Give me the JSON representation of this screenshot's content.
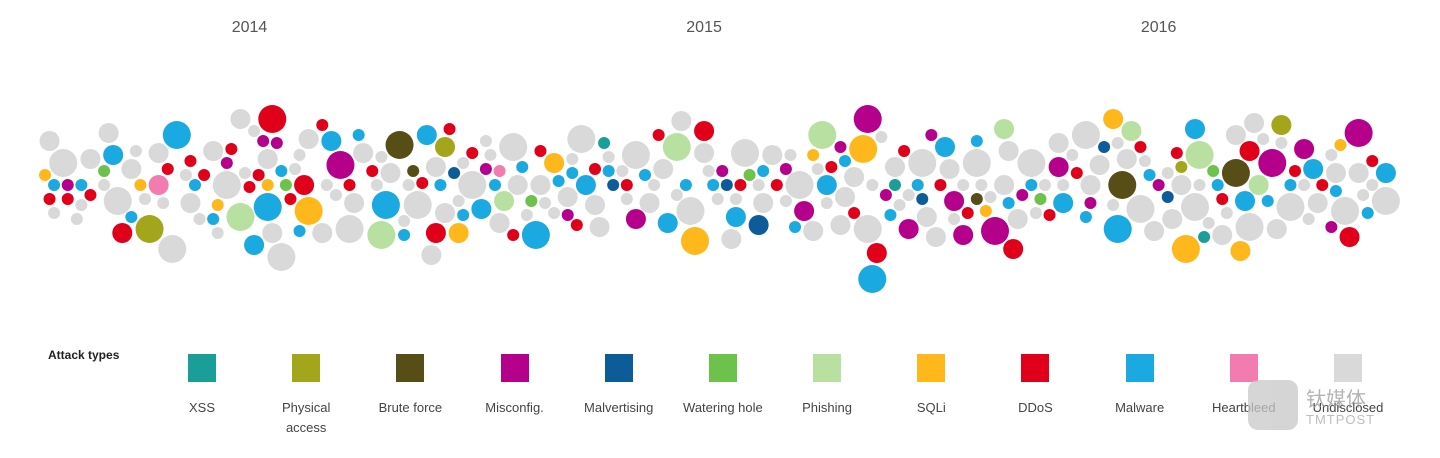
{
  "chart_data": {
    "type": "beeswarm",
    "xticks": [
      2014,
      2015,
      2016
    ],
    "xlim": [
      2013.55,
      2016.52
    ],
    "legend_title": "Attack types",
    "series": [
      {
        "name": "XSS",
        "color": "#1a9e97",
        "x": [
          2014.78,
          2015.42,
          2016.1
        ],
        "size": [
          1,
          1,
          1
        ]
      },
      {
        "name": "Physical access",
        "color": "#a3a51a",
        "x": [
          2013.78,
          2014.43,
          2016.27,
          2016.05
        ],
        "size": [
          3,
          2,
          2,
          1
        ]
      },
      {
        "name": "Brute force",
        "color": "#574d17",
        "x": [
          2014.33,
          2015.6,
          2015.92,
          2016.17,
          2014.36
        ],
        "size": [
          3,
          1,
          3,
          3,
          1
        ]
      },
      {
        "name": "Misconfig.",
        "color": "#b5008c",
        "x": [
          2013.6,
          2013.95,
          2014.03,
          2014.06,
          2014.2,
          2014.52,
          2014.7,
          2014.85,
          2015.04,
          2015.18,
          2015.22,
          2015.3,
          2015.36,
          2015.45,
          2015.5,
          2015.57,
          2015.64,
          2015.7,
          2015.78,
          2015.85,
          2016,
          2016.25,
          2016.32,
          2016.38,
          2016.44,
          2015.4,
          2015.55
        ],
        "size": [
          1,
          1,
          1,
          1,
          3,
          1,
          1,
          2,
          1,
          1,
          2,
          1,
          3,
          2,
          1,
          2,
          3,
          1,
          2,
          1,
          1,
          3,
          2,
          1,
          3,
          1,
          2
        ]
      },
      {
        "name": "Malvertising",
        "color": "#0d5c9a",
        "x": [
          2014.45,
          2014.8,
          2015.05,
          2015.12,
          2015.48,
          2015.88,
          2016.02
        ],
        "size": [
          1,
          1,
          1,
          2,
          1,
          1,
          1
        ]
      },
      {
        "name": "Watering hole",
        "color": "#6cc24a",
        "x": [
          2013.68,
          2014.08,
          2014.62,
          2015.1,
          2015.74,
          2016.12
        ],
        "size": [
          1,
          1,
          1,
          1,
          1,
          1
        ]
      },
      {
        "name": "Phishing",
        "color": "#b8e0a0",
        "x": [
          2013.98,
          2014.29,
          2014.56,
          2014.94,
          2015.26,
          2015.66,
          2015.94,
          2016.09,
          2016.22
        ],
        "size": [
          3,
          3,
          2,
          3,
          3,
          2,
          2,
          3,
          2
        ]
      },
      {
        "name": "SQLi",
        "color": "#ffb81c",
        "x": [
          2013.55,
          2013.76,
          2014.04,
          2014.13,
          2014.46,
          2014.67,
          2014.98,
          2015.24,
          2015.35,
          2015.62,
          2015.9,
          2016.06,
          2016.18,
          2016.4,
          2013.93
        ],
        "size": [
          1,
          1,
          1,
          3,
          2,
          2,
          3,
          1,
          3,
          1,
          2,
          3,
          2,
          1,
          1
        ]
      },
      {
        "name": "DDoS",
        "color": "#e00019",
        "x": [
          2013.56,
          2013.6,
          2013.65,
          2013.72,
          2013.82,
          2013.87,
          2013.9,
          2013.96,
          2014,
          2014.02,
          2014.05,
          2014.09,
          2014.12,
          2014.16,
          2014.22,
          2014.27,
          2014.38,
          2014.41,
          2014.44,
          2014.49,
          2014.58,
          2014.64,
          2014.72,
          2014.76,
          2014.83,
          2014.9,
          2015,
          2015.08,
          2015.16,
          2015.28,
          2015.33,
          2015.38,
          2015.44,
          2015.52,
          2015.58,
          2015.68,
          2015.76,
          2015.82,
          2015.96,
          2016.04,
          2016.14,
          2016.2,
          2016.3,
          2016.36,
          2016.42,
          2016.47
        ],
        "size": [
          1,
          1,
          1,
          2,
          1,
          1,
          1,
          1,
          1,
          1,
          3,
          1,
          2,
          1,
          1,
          1,
          1,
          2,
          1,
          1,
          1,
          1,
          1,
          1,
          1,
          1,
          2,
          1,
          1,
          1,
          1,
          2,
          1,
          1,
          1,
          2,
          1,
          1,
          1,
          1,
          1,
          2,
          1,
          1,
          2,
          1
        ]
      },
      {
        "name": "Malware",
        "color": "#1aa9e0",
        "x": [
          2013.57,
          2013.63,
          2013.7,
          2013.74,
          2013.84,
          2013.88,
          2013.92,
          2014.01,
          2014.04,
          2014.07,
          2014.11,
          2014.18,
          2014.24,
          2014.3,
          2014.34,
          2014.39,
          2014.42,
          2014.47,
          2014.51,
          2014.54,
          2014.6,
          2014.63,
          2014.68,
          2014.71,
          2014.74,
          2014.79,
          2014.87,
          2014.92,
          2014.96,
          2015.02,
          2015.07,
          2015.13,
          2015.2,
          2015.27,
          2015.31,
          2015.37,
          2015.41,
          2015.47,
          2015.53,
          2015.6,
          2015.67,
          2015.72,
          2015.79,
          2015.84,
          2015.91,
          2015.98,
          2016.08,
          2016.13,
          2016.19,
          2016.24,
          2016.29,
          2016.34,
          2016.39,
          2016.46,
          2016.5
        ],
        "size": [
          1,
          1,
          2,
          1,
          3,
          1,
          1,
          2,
          3,
          1,
          1,
          2,
          1,
          3,
          1,
          2,
          1,
          1,
          2,
          1,
          1,
          3,
          1,
          1,
          2,
          1,
          1,
          2,
          1,
          1,
          2,
          1,
          1,
          2,
          1,
          3,
          1,
          1,
          2,
          1,
          1,
          1,
          2,
          1,
          3,
          1,
          2,
          1,
          2,
          1,
          1,
          2,
          1,
          1,
          2
        ]
      },
      {
        "name": "Heartbleed",
        "color": "#f27bb0",
        "x": [
          2013.8,
          2014.55
        ],
        "size": [
          2,
          1
        ]
      },
      {
        "name": "Undisclosed",
        "color": "#d9d9d9",
        "x": [
          2013.56,
          2013.59,
          2013.62,
          2013.65,
          2013.68,
          2013.71,
          2013.74,
          2013.77,
          2013.8,
          2013.83,
          2013.86,
          2013.89,
          2013.92,
          2013.95,
          2013.98,
          2014.01,
          2014.04,
          2014.07,
          2014.1,
          2014.13,
          2014.16,
          2014.19,
          2014.22,
          2014.25,
          2014.28,
          2014.31,
          2014.34,
          2014.37,
          2014.4,
          2014.43,
          2014.46,
          2014.49,
          2014.52,
          2014.55,
          2014.58,
          2014.61,
          2014.64,
          2014.67,
          2014.7,
          2014.73,
          2014.76,
          2014.79,
          2014.82,
          2014.85,
          2014.88,
          2014.91,
          2014.94,
          2014.97,
          2015,
          2015.03,
          2015.06,
          2015.09,
          2015.12,
          2015.15,
          2015.18,
          2015.21,
          2015.24,
          2015.27,
          2015.3,
          2015.33,
          2015.36,
          2015.39,
          2015.42,
          2015.45,
          2015.48,
          2015.51,
          2015.54,
          2015.57,
          2015.6,
          2015.63,
          2015.66,
          2015.69,
          2015.72,
          2015.75,
          2015.78,
          2015.81,
          2015.84,
          2015.87,
          2015.9,
          2015.93,
          2015.96,
          2015.99,
          2016.02,
          2016.05,
          2016.08,
          2016.11,
          2016.14,
          2016.17,
          2016.2,
          2016.23,
          2016.26,
          2016.29,
          2016.32,
          2016.35,
          2016.38,
          2016.41,
          2016.44,
          2016.47,
          2016.5,
          2013.57,
          2013.63,
          2013.69,
          2013.75,
          2013.81,
          2013.87,
          2013.93,
          2013.99,
          2014.05,
          2014.11,
          2014.17,
          2014.23,
          2014.29,
          2014.35,
          2014.41,
          2014.47,
          2014.53,
          2014.59,
          2014.65,
          2014.71,
          2014.77,
          2014.83,
          2014.89,
          2014.95,
          2015.01,
          2015.07,
          2015.13,
          2015.19,
          2015.25,
          2015.31,
          2015.37,
          2015.43,
          2015.49,
          2015.55,
          2015.61,
          2015.67,
          2015.73,
          2015.79,
          2015.85,
          2015.91,
          2015.97,
          2016.03,
          2016.09,
          2016.15,
          2016.21,
          2016.27,
          2016.33,
          2016.39,
          2016.45
        ],
        "size": [
          2,
          3,
          1,
          2,
          1,
          3,
          2,
          1,
          2,
          3,
          1,
          1,
          2,
          3,
          2,
          1,
          2,
          3,
          1,
          2,
          2,
          1,
          3,
          2,
          1,
          2,
          1,
          3,
          2,
          2,
          1,
          3,
          1,
          2,
          3,
          1,
          2,
          1,
          2,
          3,
          2,
          1,
          1,
          3,
          2,
          2,
          1,
          3,
          2,
          1,
          2,
          3,
          1,
          2,
          1,
          3,
          2,
          1,
          2,
          2,
          3,
          1,
          2,
          1,
          3,
          2,
          2,
          1,
          3,
          1,
          2,
          2,
          3,
          1,
          2,
          1,
          3,
          2,
          1,
          2,
          3,
          2,
          1,
          2,
          3,
          1,
          2,
          2,
          3,
          1,
          2,
          3,
          1,
          2,
          1,
          3,
          2,
          1,
          3,
          1,
          1,
          2,
          1,
          1,
          2,
          1,
          1,
          2,
          1,
          1,
          2,
          1,
          1,
          2,
          1,
          1,
          2,
          1,
          1,
          2,
          1,
          1,
          2,
          1,
          1,
          2,
          1,
          1,
          2,
          1,
          1,
          2,
          1,
          1,
          2,
          1,
          1,
          2,
          1,
          1,
          2,
          1,
          1,
          2,
          1,
          1,
          2,
          1
        ]
      }
    ]
  },
  "watermark": {
    "brand": "钛媒体",
    "sub": "TMTPOST"
  }
}
